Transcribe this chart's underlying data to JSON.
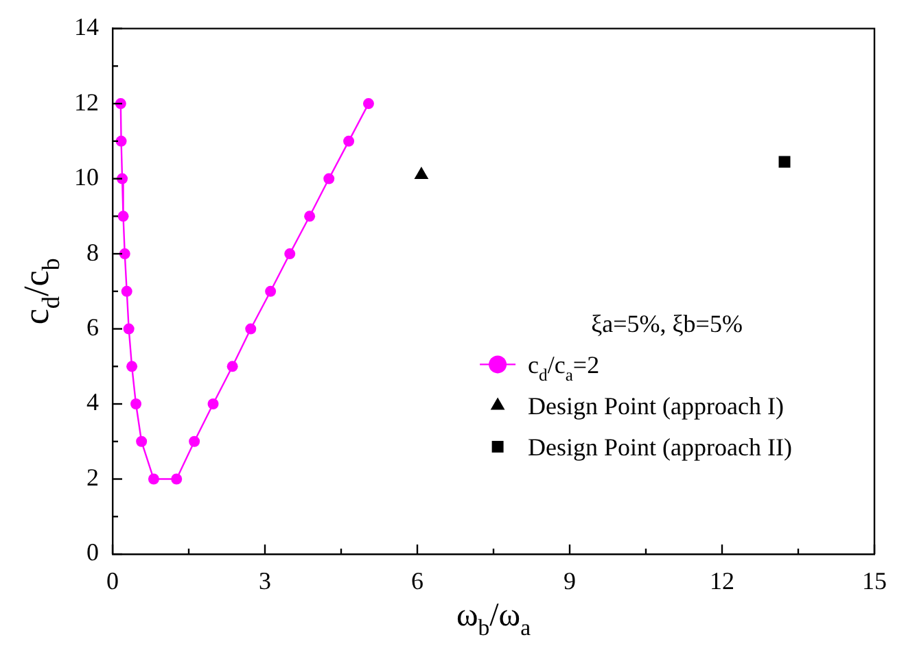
{
  "chart_data": {
    "type": "line",
    "xlabel": "ω$_{b}$/ω$_{a}$",
    "ylabel": "c$_{d}$/c$_{b}$",
    "legend_title": "ξa=5%, ξb=5%",
    "xlim": [
      0,
      15
    ],
    "xticks": [
      0,
      {
        "value": 1.5,
        "label": null
      },
      3,
      {
        "value": 4.5,
        "label": null
      },
      6,
      {
        "value": 7.5,
        "label": null
      },
      9,
      {
        "value": 10.5,
        "label": null
      },
      12,
      {
        "value": 13.5,
        "label": null
      },
      15
    ],
    "ylim": [
      0,
      14
    ],
    "yticks": [
      0,
      {
        "value": 1,
        "label": null
      },
      2,
      {
        "value": 3,
        "label": null
      },
      4,
      {
        "value": 5,
        "label": null
      },
      6,
      {
        "value": 7,
        "label": null
      },
      8,
      {
        "value": 9,
        "label": null
      },
      10,
      {
        "value": 11,
        "label": null
      },
      12,
      {
        "value": 13,
        "label": null
      },
      14
    ],
    "grid": false,
    "legend": "bottom right",
    "series": [
      {
        "name": "c$_{d}$/c$_{a}$=2",
        "color": "#ff00ff",
        "marker": "circle",
        "x": [
          0.16,
          0.17,
          0.19,
          0.21,
          0.24,
          0.28,
          0.32,
          0.38,
          0.46,
          0.57,
          0.81,
          1.26,
          1.61,
          1.98,
          2.36,
          2.72,
          3.11,
          3.49,
          3.88,
          4.26,
          4.65,
          5.04
        ],
        "values": [
          12,
          11,
          10,
          9,
          8,
          7,
          6,
          5,
          4,
          3,
          2,
          2,
          3,
          4,
          5,
          6,
          7,
          8,
          9,
          10,
          11,
          12
        ]
      },
      {
        "name": "Design Point (approach I)",
        "type": "scatter",
        "color": "#000000",
        "marker": "triangle",
        "x": [
          6.08
        ],
        "values": [
          10.1
        ]
      },
      {
        "name": "Design Point (approach II)",
        "type": "scatter",
        "color": "#000000",
        "marker": "square",
        "x": [
          13.23
        ],
        "values": [
          10.45
        ]
      }
    ]
  }
}
